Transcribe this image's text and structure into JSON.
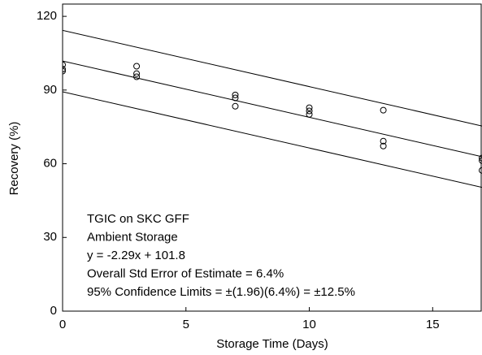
{
  "chart_data": {
    "type": "scatter",
    "xlabel": "Storage Time (Days)",
    "ylabel": "Recovery (%)",
    "xlim": [
      0,
      17
    ],
    "ylim": [
      0,
      125
    ],
    "xticks": [
      0,
      5,
      10,
      15
    ],
    "yticks": [
      0,
      30,
      60,
      90,
      120
    ],
    "series": [
      {
        "color": "#000000",
        "x": [
          0,
          0,
          0,
          3,
          3,
          3,
          7,
          7,
          7,
          10,
          10,
          10,
          13,
          13,
          13,
          17,
          17,
          17
        ],
        "values": [
          100.3,
          98.5,
          97.7,
          99.7,
          96.7,
          95.4,
          88,
          86.8,
          83.4,
          82.8,
          81.5,
          80.1,
          81.8,
          69.2,
          67.2,
          62.3,
          61.3,
          57.3
        ]
      }
    ],
    "lines": [
      {
        "color": "#000000",
        "x": [
          0,
          17
        ],
        "values": [
          114.3,
          75.37
        ]
      },
      {
        "color": "#000000",
        "x": [
          0,
          17
        ],
        "values": [
          101.8,
          62.87
        ]
      },
      {
        "color": "#000000",
        "x": [
          0,
          17
        ],
        "values": [
          89.3,
          50.37
        ]
      }
    ],
    "annotations": [
      "TGIC on SKC GFF",
      "Ambient Storage",
      "y = -2.29x + 101.8",
      "Overall Std Error of Estimate = 6.4%",
      "95% Confidence Limits = ±(1.96)(6.4%) = ±12.5%"
    ]
  }
}
